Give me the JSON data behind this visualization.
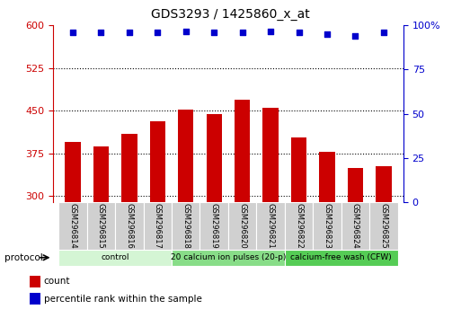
{
  "title": "GDS3293 / 1425860_x_at",
  "samples": [
    "GSM296814",
    "GSM296815",
    "GSM296816",
    "GSM296817",
    "GSM296818",
    "GSM296819",
    "GSM296820",
    "GSM296821",
    "GSM296822",
    "GSM296823",
    "GSM296824",
    "GSM296825"
  ],
  "counts": [
    395,
    388,
    410,
    432,
    452,
    444,
    470,
    456,
    404,
    378,
    350,
    352
  ],
  "percentile_ranks": [
    96,
    96,
    96,
    96,
    96.5,
    96,
    96,
    96.5,
    96,
    95,
    94,
    96
  ],
  "bar_color": "#cc0000",
  "dot_color": "#0000cc",
  "ylim_left": [
    290,
    600
  ],
  "ylim_right": [
    0,
    100
  ],
  "yticks_left": [
    300,
    375,
    450,
    525,
    600
  ],
  "yticks_right": [
    0,
    25,
    50,
    75,
    100
  ],
  "groups": [
    {
      "label": "control",
      "start": 0,
      "end": 4,
      "color": "#d4f5d4"
    },
    {
      "label": "20 calcium ion pulses (20-p)",
      "start": 4,
      "end": 8,
      "color": "#88dd88"
    },
    {
      "label": "calcium-free wash (CFW)",
      "start": 8,
      "end": 12,
      "color": "#55cc55"
    }
  ],
  "protocol_label": "protocol",
  "legend_count_label": "count",
  "legend_percentile_label": "percentile rank within the sample",
  "left_axis_color": "#cc0000",
  "right_axis_color": "#0000cc",
  "background_color": "#ffffff",
  "plot_bg_color": "#ffffff",
  "grid_color": "#000000",
  "bar_width": 0.55
}
